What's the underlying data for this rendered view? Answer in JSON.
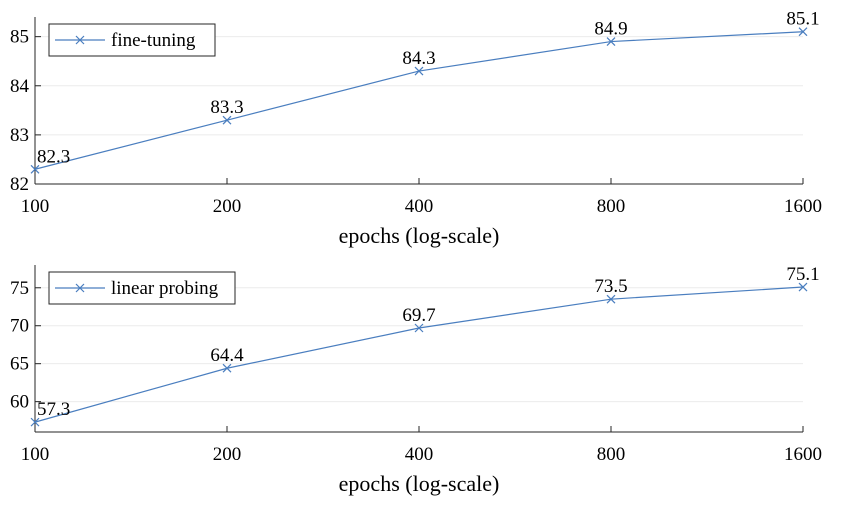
{
  "colors": {
    "series": "#4a7ebf",
    "axis": "#262626",
    "grid": "#ebebeb",
    "background": "#ffffff"
  },
  "chart_data": [
    {
      "type": "line",
      "x_scale": "log2",
      "x": [
        100,
        200,
        400,
        800,
        1600
      ],
      "x_ticks": [
        "100",
        "200",
        "400",
        "800",
        "1600"
      ],
      "xlim": [
        100,
        1600
      ],
      "ylim": [
        82,
        85.4
      ],
      "y_ticks": [
        82,
        83,
        84,
        85
      ],
      "xlabel": "epochs (log-scale)",
      "ylabel": "",
      "grid": "horizontal",
      "legend": "top-left",
      "marker": "x",
      "series": [
        {
          "name": "fine-tuning",
          "values": [
            82.3,
            83.3,
            84.3,
            84.9,
            85.1
          ],
          "labels": [
            "82.3",
            "83.3",
            "84.3",
            "84.9",
            "85.1"
          ]
        }
      ]
    },
    {
      "type": "line",
      "x_scale": "log2",
      "x": [
        100,
        200,
        400,
        800,
        1600
      ],
      "x_ticks": [
        "100",
        "200",
        "400",
        "800",
        "1600"
      ],
      "xlim": [
        100,
        1600
      ],
      "ylim": [
        56,
        78
      ],
      "y_ticks": [
        60,
        65,
        70,
        75
      ],
      "xlabel": "epochs (log-scale)",
      "ylabel": "",
      "grid": "horizontal",
      "legend": "top-left",
      "marker": "x",
      "series": [
        {
          "name": "linear probing",
          "values": [
            57.3,
            64.4,
            69.7,
            73.5,
            75.1
          ],
          "labels": [
            "57.3",
            "64.4",
            "69.7",
            "73.5",
            "75.1"
          ]
        }
      ]
    }
  ]
}
